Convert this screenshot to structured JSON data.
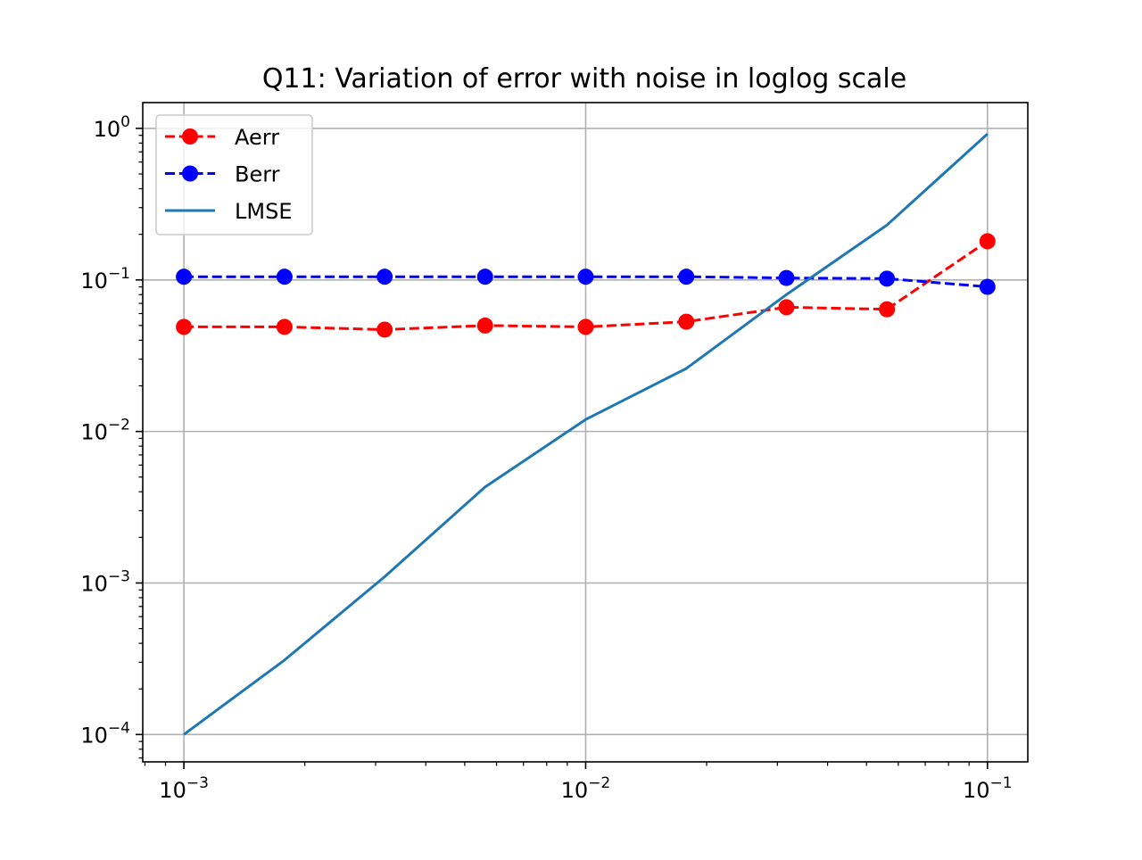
{
  "chart_data": {
    "type": "line",
    "title": "Q11: Variation of error with noise in loglog scale",
    "xlabel": "",
    "ylabel": "",
    "xscale": "log",
    "yscale": "log",
    "xlim": [
      0.00079,
      0.126
    ],
    "ylim": [
      6.6e-05,
      1.48
    ],
    "grid": true,
    "legend_position": "top-left",
    "x_ticks": [
      {
        "value": 0.001,
        "base": "10",
        "exp": "−3"
      },
      {
        "value": 0.01,
        "base": "10",
        "exp": "−2"
      },
      {
        "value": 0.1,
        "base": "10",
        "exp": "−1"
      }
    ],
    "y_ticks": [
      {
        "value": 0.0001,
        "base": "10",
        "exp": "−4"
      },
      {
        "value": 0.001,
        "base": "10",
        "exp": "−3"
      },
      {
        "value": 0.01,
        "base": "10",
        "exp": "−2"
      },
      {
        "value": 0.1,
        "base": "10",
        "exp": "−1"
      },
      {
        "value": 1,
        "base": "10",
        "exp": "0"
      }
    ],
    "x": [
      0.001,
      0.00178,
      0.00316,
      0.00562,
      0.01,
      0.0178,
      0.0316,
      0.0562,
      0.1
    ],
    "series": [
      {
        "name": "Aerr",
        "color": "#ff0000",
        "style": "dashed",
        "marker": "circle",
        "values": [
          0.049,
          0.049,
          0.047,
          0.05,
          0.049,
          0.053,
          0.066,
          0.064,
          0.18
        ]
      },
      {
        "name": "Berr",
        "color": "#0000ff",
        "style": "dashed",
        "marker": "circle",
        "values": [
          0.105,
          0.105,
          0.105,
          0.105,
          0.105,
          0.105,
          0.103,
          0.102,
          0.09
        ]
      },
      {
        "name": "LMSE",
        "color": "#1f77b4",
        "style": "solid",
        "marker": "none",
        "values": [
          0.0001,
          0.00031,
          0.0011,
          0.0043,
          0.012,
          0.026,
          0.08,
          0.23,
          0.92
        ]
      }
    ]
  }
}
